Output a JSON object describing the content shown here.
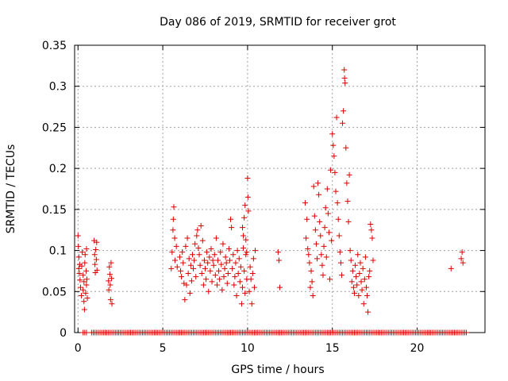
{
  "chart_data": {
    "type": "scatter",
    "title": "Day 086 of 2019, SRMTID for receiver grot",
    "xlabel": "GPS time / hours",
    "ylabel": "SRMTID / TECUs",
    "xlim": [
      -0.2,
      24
    ],
    "ylim": [
      0,
      0.35
    ],
    "xticks": [
      0,
      5,
      10,
      15,
      20
    ],
    "xtick_labels": [
      "0",
      "5",
      "10",
      "15",
      "20"
    ],
    "yticks": [
      0,
      0.05,
      0.1,
      0.15,
      0.2,
      0.25,
      0.3,
      0.35
    ],
    "ytick_labels": [
      "0",
      "0.05",
      "0.1",
      "0.15",
      "0.2",
      "0.25",
      "0.3",
      "0.35"
    ],
    "grid": true,
    "marker": "plus",
    "color": "#dd0000",
    "series": [
      {
        "name": "SRMTID",
        "points": [
          [
            0.0,
            0.118
          ],
          [
            0.02,
            0.105
          ],
          [
            0.05,
            0.092
          ],
          [
            0.05,
            0.078
          ],
          [
            0.08,
            0.072
          ],
          [
            0.1,
            0.083
          ],
          [
            0.12,
            0.064
          ],
          [
            0.15,
            0.055
          ],
          [
            0.2,
            0.045
          ],
          [
            0.22,
            0.081
          ],
          [
            0.25,
            0.098
          ],
          [
            0.3,
            0.07
          ],
          [
            0.3,
            0.052
          ],
          [
            0.35,
            0.038
          ],
          [
            0.35,
            0.062
          ],
          [
            0.38,
            0.028
          ],
          [
            0.4,
            0.085
          ],
          [
            0.42,
            0.095
          ],
          [
            0.45,
            0.048
          ],
          [
            0.48,
            0.075
          ],
          [
            0.5,
            0.102
          ],
          [
            0.5,
            0.058
          ],
          [
            0.52,
            0.065
          ],
          [
            0.55,
            0.042
          ],
          [
            0.95,
            0.112
          ],
          [
            0.98,
            0.095
          ],
          [
            1.0,
            0.083
          ],
          [
            1.02,
            0.073
          ],
          [
            1.05,
            0.101
          ],
          [
            1.08,
            0.089
          ],
          [
            1.1,
            0.11
          ],
          [
            1.12,
            0.076
          ],
          [
            1.8,
            0.063
          ],
          [
            1.82,
            0.052
          ],
          [
            1.85,
            0.08
          ],
          [
            1.88,
            0.071
          ],
          [
            1.9,
            0.058
          ],
          [
            1.92,
            0.04
          ],
          [
            1.95,
            0.085
          ],
          [
            1.98,
            0.066
          ],
          [
            2.0,
            0.035
          ],
          [
            5.5,
            0.078
          ],
          [
            5.55,
            0.098
          ],
          [
            5.6,
            0.125
          ],
          [
            5.62,
            0.138
          ],
          [
            5.65,
            0.153
          ],
          [
            5.7,
            0.115
          ],
          [
            5.72,
            0.088
          ],
          [
            5.8,
            0.105
          ],
          [
            5.85,
            0.08
          ],
          [
            6.0,
            0.092
          ],
          [
            6.05,
            0.075
          ],
          [
            6.1,
            0.068
          ],
          [
            6.15,
            0.098
          ],
          [
            6.2,
            0.085
          ],
          [
            6.25,
            0.06
          ],
          [
            6.3,
            0.04
          ],
          [
            6.35,
            0.105
          ],
          [
            6.4,
            0.058
          ],
          [
            6.45,
            0.115
          ],
          [
            6.5,
            0.072
          ],
          [
            6.55,
            0.09
          ],
          [
            6.6,
            0.048
          ],
          [
            6.65,
            0.082
          ],
          [
            6.7,
            0.063
          ],
          [
            6.75,
            0.095
          ],
          [
            6.8,
            0.078
          ],
          [
            6.85,
            0.088
          ],
          [
            6.9,
            0.108
          ],
          [
            6.95,
            0.068
          ],
          [
            7.0,
            0.118
          ],
          [
            7.05,
            0.125
          ],
          [
            7.1,
            0.103
          ],
          [
            7.15,
            0.095
          ],
          [
            7.2,
            0.082
          ],
          [
            7.25,
            0.13
          ],
          [
            7.3,
            0.072
          ],
          [
            7.35,
            0.112
          ],
          [
            7.4,
            0.058
          ],
          [
            7.45,
            0.088
          ],
          [
            7.5,
            0.078
          ],
          [
            7.55,
            0.065
          ],
          [
            7.6,
            0.098
          ],
          [
            7.65,
            0.085
          ],
          [
            7.7,
            0.05
          ],
          [
            7.75,
            0.092
          ],
          [
            7.8,
            0.075
          ],
          [
            7.85,
            0.102
          ],
          [
            7.9,
            0.062
          ],
          [
            7.95,
            0.088
          ],
          [
            8.0,
            0.082
          ],
          [
            8.05,
            0.095
          ],
          [
            8.1,
            0.07
          ],
          [
            8.15,
            0.115
          ],
          [
            8.2,
            0.058
          ],
          [
            8.25,
            0.088
          ],
          [
            8.3,
            0.075
          ],
          [
            8.35,
            0.065
          ],
          [
            8.4,
            0.098
          ],
          [
            8.45,
            0.083
          ],
          [
            8.5,
            0.052
          ],
          [
            8.55,
            0.108
          ],
          [
            8.6,
            0.068
          ],
          [
            8.65,
            0.078
          ],
          [
            8.7,
            0.092
          ],
          [
            8.75,
            0.085
          ],
          [
            8.8,
            0.06
          ],
          [
            8.85,
            0.072
          ],
          [
            8.9,
            0.102
          ],
          [
            8.95,
            0.088
          ],
          [
            9.0,
            0.138
          ],
          [
            9.05,
            0.128
          ],
          [
            9.1,
            0.078
          ],
          [
            9.15,
            0.095
          ],
          [
            9.2,
            0.058
          ],
          [
            9.25,
            0.068
          ],
          [
            9.3,
            0.085
          ],
          [
            9.35,
            0.045
          ],
          [
            9.4,
            0.1
          ],
          [
            9.45,
            0.072
          ],
          [
            9.5,
            0.09
          ],
          [
            9.55,
            0.062
          ],
          [
            9.6,
            0.08
          ],
          [
            9.65,
            0.035
          ],
          [
            9.7,
            0.055
          ],
          [
            9.75,
            0.103
          ],
          [
            9.8,
            0.075
          ],
          [
            9.85,
            0.048
          ],
          [
            9.9,
            0.095
          ],
          [
            9.95,
            0.065
          ],
          [
            9.7,
            0.128
          ],
          [
            9.75,
            0.118
          ],
          [
            9.8,
            0.14
          ],
          [
            9.85,
            0.155
          ],
          [
            9.9,
            0.113
          ],
          [
            9.95,
            0.098
          ],
          [
            10.0,
            0.188
          ],
          [
            10.02,
            0.165
          ],
          [
            10.05,
            0.148
          ],
          [
            10.1,
            0.05
          ],
          [
            10.15,
            0.08
          ],
          [
            10.2,
            0.065
          ],
          [
            10.25,
            0.035
          ],
          [
            10.3,
            0.072
          ],
          [
            10.35,
            0.09
          ],
          [
            10.4,
            0.055
          ],
          [
            10.45,
            0.1
          ],
          [
            11.8,
            0.098
          ],
          [
            11.85,
            0.088
          ],
          [
            11.9,
            0.055
          ],
          [
            13.4,
            0.158
          ],
          [
            13.45,
            0.115
          ],
          [
            13.5,
            0.138
          ],
          [
            13.55,
            0.102
          ],
          [
            13.6,
            0.095
          ],
          [
            13.65,
            0.085
          ],
          [
            13.7,
            0.055
          ],
          [
            13.75,
            0.075
          ],
          [
            13.8,
            0.062
          ],
          [
            13.85,
            0.045
          ],
          [
            13.9,
            0.178
          ],
          [
            13.95,
            0.142
          ],
          [
            14.0,
            0.125
          ],
          [
            14.05,
            0.108
          ],
          [
            14.1,
            0.09
          ],
          [
            14.15,
            0.182
          ],
          [
            14.2,
            0.168
          ],
          [
            14.25,
            0.135
          ],
          [
            14.3,
            0.118
          ],
          [
            14.35,
            0.095
          ],
          [
            14.4,
            0.082
          ],
          [
            14.45,
            0.07
          ],
          [
            14.5,
            0.105
          ],
          [
            14.55,
            0.128
          ],
          [
            14.6,
            0.152
          ],
          [
            14.65,
            0.092
          ],
          [
            14.7,
            0.175
          ],
          [
            14.75,
            0.145
          ],
          [
            14.8,
            0.122
          ],
          [
            14.85,
            0.065
          ],
          [
            14.9,
            0.198
          ],
          [
            14.95,
            0.112
          ],
          [
            15.0,
            0.242
          ],
          [
            15.05,
            0.228
          ],
          [
            15.1,
            0.215
          ],
          [
            15.15,
            0.195
          ],
          [
            15.2,
            0.172
          ],
          [
            15.25,
            0.262
          ],
          [
            15.3,
            0.158
          ],
          [
            15.35,
            0.138
          ],
          [
            15.4,
            0.118
          ],
          [
            15.45,
            0.098
          ],
          [
            15.5,
            0.085
          ],
          [
            15.55,
            0.07
          ],
          [
            15.6,
            0.255
          ],
          [
            15.65,
            0.27
          ],
          [
            15.7,
            0.32
          ],
          [
            15.72,
            0.31
          ],
          [
            15.75,
            0.304
          ],
          [
            15.8,
            0.225
          ],
          [
            15.85,
            0.182
          ],
          [
            15.9,
            0.16
          ],
          [
            15.95,
            0.135
          ],
          [
            16.0,
            0.192
          ],
          [
            16.05,
            0.1
          ],
          [
            16.1,
            0.088
          ],
          [
            16.15,
            0.062
          ],
          [
            16.2,
            0.075
          ],
          [
            16.25,
            0.055
          ],
          [
            16.3,
            0.048
          ],
          [
            16.35,
            0.082
          ],
          [
            16.4,
            0.068
          ],
          [
            16.45,
            0.058
          ],
          [
            16.5,
            0.095
          ],
          [
            16.55,
            0.045
          ],
          [
            16.6,
            0.072
          ],
          [
            16.65,
            0.085
          ],
          [
            16.7,
            0.062
          ],
          [
            16.75,
            0.052
          ],
          [
            16.8,
            0.078
          ],
          [
            16.85,
            0.035
          ],
          [
            16.9,
            0.065
          ],
          [
            16.95,
            0.092
          ],
          [
            17.0,
            0.055
          ],
          [
            17.05,
            0.045
          ],
          [
            17.1,
            0.025
          ],
          [
            17.15,
            0.068
          ],
          [
            17.2,
            0.075
          ],
          [
            17.25,
            0.132
          ],
          [
            17.3,
            0.125
          ],
          [
            17.35,
            0.115
          ],
          [
            17.4,
            0.088
          ],
          [
            22.0,
            0.078
          ],
          [
            22.6,
            0.09
          ],
          [
            22.65,
            0.098
          ],
          [
            22.7,
            0.085
          ]
        ],
        "zero_segments": [
          [
            0.3,
            0.5
          ],
          [
            0.8,
            1.2
          ],
          [
            1.3,
            17.4
          ],
          [
            17.5,
            22.9
          ]
        ]
      }
    ]
  }
}
